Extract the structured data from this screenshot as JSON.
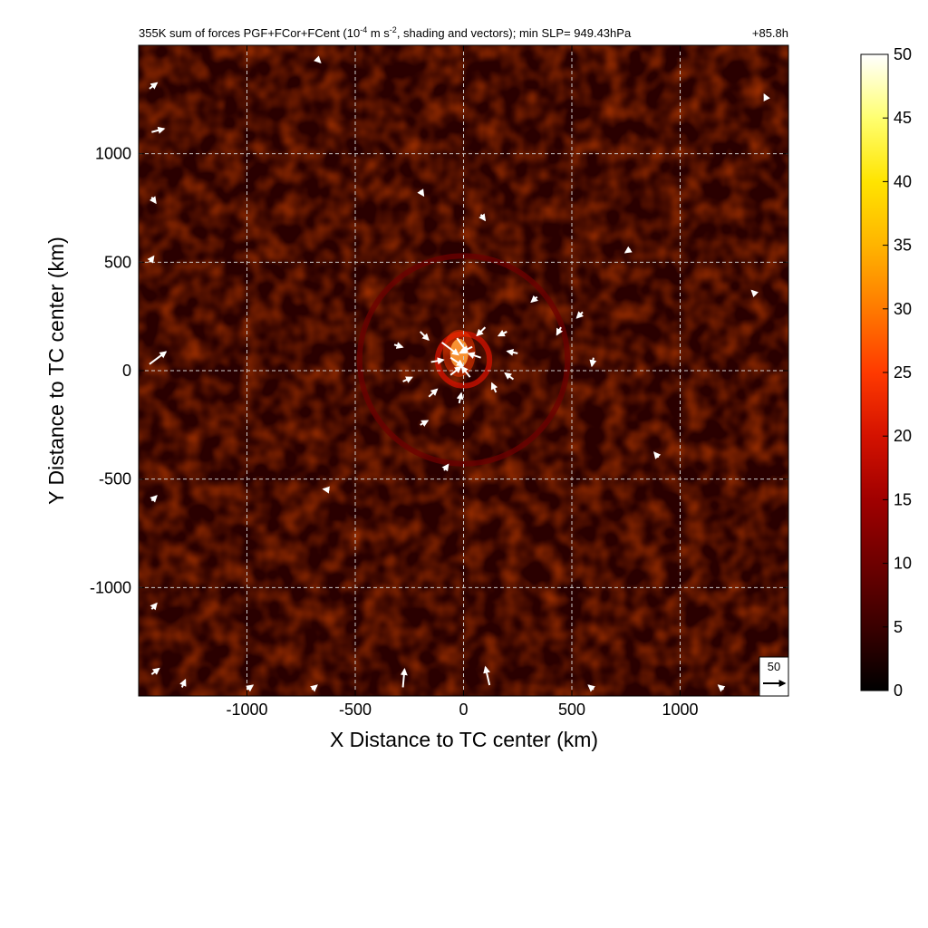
{
  "chart_data": {
    "type": "heatmap",
    "title": {
      "main_before": "355K sum of forces PGF+FCor+FCent (10",
      "exp1": "-4",
      "main_mid": " m s",
      "exp2": "-2",
      "main_after": ", shading and vectors); min SLP= 949.43hPa",
      "time": "+85.8h"
    },
    "xlabel": "X Distance to TC center (km)",
    "ylabel": "Y Distance to TC center (km)",
    "xlim": [
      -1500,
      1500
    ],
    "ylim": [
      -1500,
      1500
    ],
    "x_ticks": [
      -1000,
      -500,
      0,
      500,
      1000
    ],
    "y_ticks": [
      -1000,
      -500,
      0,
      500,
      1000
    ],
    "x_tick_labels": [
      "-1000",
      "-500",
      "0",
      "500",
      "1000"
    ],
    "y_tick_labels": [
      "-1000",
      "-500",
      "0",
      "500",
      "1000"
    ],
    "grid": true,
    "colorbar": {
      "min": 0,
      "max": 50,
      "ticks": [
        0,
        5,
        10,
        15,
        20,
        25,
        30,
        35,
        40,
        45,
        50
      ],
      "tick_labels": [
        "0",
        "5",
        "10",
        "15",
        "20",
        "25",
        "30",
        "35",
        "40",
        "45",
        "50"
      ],
      "colors": [
        "#000000",
        "#3a0000",
        "#6e0000",
        "#a00000",
        "#d41200",
        "#ff3a00",
        "#ff7a00",
        "#ffb400",
        "#ffe400",
        "#ffff70",
        "#ffffff"
      ]
    },
    "reference_vector": {
      "label": "50",
      "magnitude": 50
    },
    "vortex_center": [
      0,
      50
    ],
    "field": {
      "background_value": 6,
      "rings": [
        {
          "radius_km": 120,
          "value": 22
        },
        {
          "radius_km": 480,
          "value": 12
        }
      ],
      "peak": {
        "x": -20,
        "y": 80,
        "value": 45
      }
    },
    "vectors": [
      {
        "x": -100,
        "y": 130,
        "u": 40,
        "v": -30
      },
      {
        "x": -60,
        "y": 60,
        "u": 30,
        "v": -20
      },
      {
        "x": -30,
        "y": 150,
        "u": 25,
        "v": -35
      },
      {
        "x": 40,
        "y": 110,
        "u": -30,
        "v": -15
      },
      {
        "x": 80,
        "y": 60,
        "u": -30,
        "v": 10
      },
      {
        "x": 30,
        "y": -30,
        "u": -20,
        "v": 25
      },
      {
        "x": -60,
        "y": -20,
        "u": 25,
        "v": 20
      },
      {
        "x": -150,
        "y": 40,
        "u": 30,
        "v": 5
      },
      {
        "x": -200,
        "y": 180,
        "u": 20,
        "v": -20
      },
      {
        "x": 100,
        "y": 200,
        "u": -20,
        "v": -20
      },
      {
        "x": 200,
        "y": 180,
        "u": -20,
        "v": -10
      },
      {
        "x": 250,
        "y": 80,
        "u": -25,
        "v": 5
      },
      {
        "x": 230,
        "y": -40,
        "u": -20,
        "v": 15
      },
      {
        "x": 150,
        "y": -100,
        "u": -10,
        "v": 22
      },
      {
        "x": -20,
        "y": -150,
        "u": 5,
        "v": 24
      },
      {
        "x": -160,
        "y": -120,
        "u": 20,
        "v": 18
      },
      {
        "x": -280,
        "y": -50,
        "u": 22,
        "v": 10
      },
      {
        "x": -320,
        "y": 120,
        "u": 20,
        "v": -6
      },
      {
        "x": 450,
        "y": 200,
        "u": -10,
        "v": -18
      },
      {
        "x": 600,
        "y": 60,
        "u": -4,
        "v": -20
      },
      {
        "x": 550,
        "y": 270,
        "u": -14,
        "v": -14
      },
      {
        "x": 340,
        "y": 340,
        "u": -14,
        "v": -12
      },
      {
        "x": -200,
        "y": -250,
        "u": 18,
        "v": 10
      },
      {
        "x": -90,
        "y": -460,
        "u": 10,
        "v": 14
      },
      {
        "x": 80,
        "y": 720,
        "u": 10,
        "v": -14
      },
      {
        "x": -200,
        "y": 830,
        "u": 8,
        "v": -12
      },
      {
        "x": 770,
        "y": 560,
        "u": -12,
        "v": -8
      },
      {
        "x": 900,
        "y": -400,
        "u": -10,
        "v": 12
      },
      {
        "x": -1450,
        "y": 30,
        "u": 40,
        "v": 30
      },
      {
        "x": -1440,
        "y": 1100,
        "u": 30,
        "v": 8
      },
      {
        "x": -1450,
        "y": 1300,
        "u": 18,
        "v": 14
      },
      {
        "x": -1440,
        "y": 800,
        "u": 10,
        "v": -14
      },
      {
        "x": -1450,
        "y": 500,
        "u": 10,
        "v": 14
      },
      {
        "x": -1440,
        "y": -600,
        "u": 12,
        "v": 12
      },
      {
        "x": -1440,
        "y": -1100,
        "u": 12,
        "v": 14
      },
      {
        "x": -1440,
        "y": -1400,
        "u": 18,
        "v": 14
      },
      {
        "x": -1300,
        "y": -1460,
        "u": 8,
        "v": 18
      },
      {
        "x": -280,
        "y": -1460,
        "u": 4,
        "v": 44
      },
      {
        "x": 120,
        "y": -1450,
        "u": -10,
        "v": 44
      },
      {
        "x": -700,
        "y": -1470,
        "u": 12,
        "v": 10
      },
      {
        "x": -1000,
        "y": -1470,
        "u": 14,
        "v": 10
      },
      {
        "x": 600,
        "y": -1470,
        "u": -12,
        "v": 10
      },
      {
        "x": 1200,
        "y": -1470,
        "u": -12,
        "v": 10
      },
      {
        "x": 1400,
        "y": 1250,
        "u": -6,
        "v": 12
      },
      {
        "x": 1350,
        "y": 350,
        "u": -10,
        "v": 10
      },
      {
        "x": -620,
        "y": -550,
        "u": -14,
        "v": 2
      },
      {
        "x": -680,
        "y": 1440,
        "u": 10,
        "v": -10
      }
    ]
  }
}
